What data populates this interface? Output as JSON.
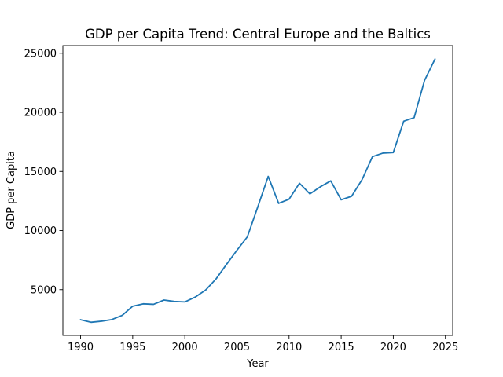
{
  "chart_data": {
    "type": "line",
    "title": "GDP per Capita Trend: Central Europe and the Baltics",
    "xlabel": "Year",
    "ylabel": "GDP per Capita",
    "xlim": [
      1988.3,
      2025.7
    ],
    "ylim": [
      1130,
      25650
    ],
    "xticks": [
      1990,
      1995,
      2000,
      2005,
      2010,
      2015,
      2020,
      2025
    ],
    "yticks": [
      5000,
      10000,
      15000,
      20000,
      25000
    ],
    "grid": false,
    "color": "#1f77b4",
    "series": [
      {
        "x": [
          1990,
          1991,
          1992,
          1993,
          1994,
          1995,
          1996,
          1997,
          1998,
          1999,
          2000,
          2001,
          2002,
          2003,
          2004,
          2005,
          2006,
          2007,
          2008,
          2009,
          2010,
          2011,
          2012,
          2013,
          2014,
          2015,
          2016,
          2017,
          2018,
          2019,
          2020,
          2021,
          2022,
          2023,
          2024
        ],
        "y": [
          2450,
          2240,
          2330,
          2470,
          2830,
          3600,
          3800,
          3760,
          4120,
          4000,
          3960,
          4370,
          4970,
          5910,
          7140,
          8330,
          9470,
          12000,
          14580,
          12300,
          12650,
          14000,
          13100,
          13700,
          14200,
          12600,
          12900,
          14300,
          16250,
          16550,
          16600,
          19250,
          19550,
          22700,
          24500
        ]
      }
    ]
  }
}
